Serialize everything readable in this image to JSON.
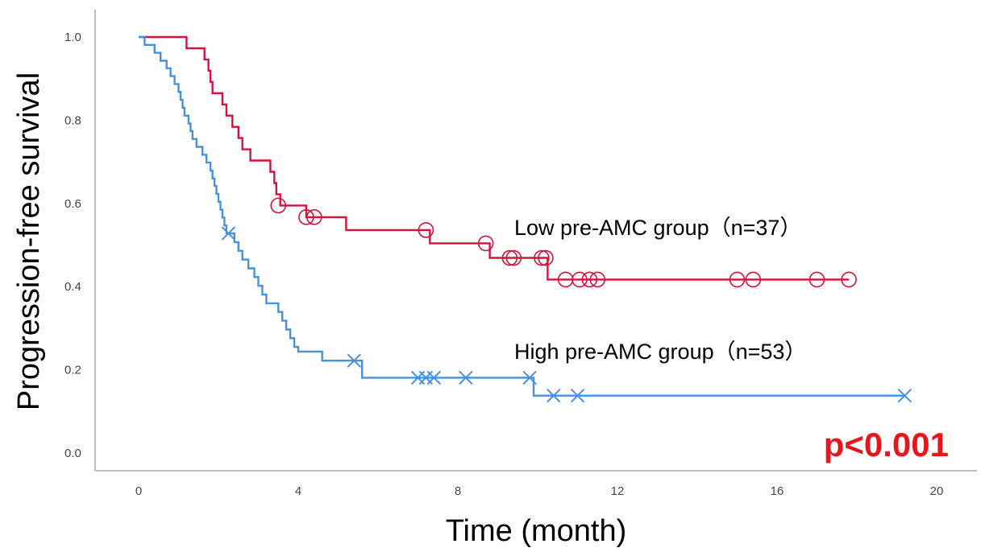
{
  "chart_data": {
    "type": "line",
    "subtype": "kaplan-meier step curve",
    "title": "",
    "xlabel": "Time (month)",
    "ylabel": "Progression-free survival",
    "xlim": [
      -0.5,
      20.8
    ],
    "ylim": [
      -0.045,
      1.07
    ],
    "xticks": [
      0,
      4,
      8,
      12,
      16,
      20
    ],
    "xtick_labels": [
      "0",
      "4",
      "8",
      "12",
      "16",
      "20"
    ],
    "yticks": [
      0.0,
      0.2,
      0.4,
      0.6,
      0.8,
      1.0
    ],
    "ytick_labels": [
      "0.0",
      "0.2",
      "0.4",
      "0.6",
      "0.8",
      "1.0"
    ],
    "grid": false,
    "annotation": "p<0.001",
    "annotation_color": "#e8151a",
    "series": [
      {
        "name": "Low pre-AMC group（n=37）",
        "color": "#d2143c",
        "censor_marker": "circle",
        "steps": [
          [
            0.0,
            1.0
          ],
          [
            1.2,
            0.973
          ],
          [
            1.65,
            0.946
          ],
          [
            1.75,
            0.919
          ],
          [
            1.8,
            0.892
          ],
          [
            1.85,
            0.865
          ],
          [
            2.1,
            0.838
          ],
          [
            2.2,
            0.811
          ],
          [
            2.35,
            0.784
          ],
          [
            2.5,
            0.757
          ],
          [
            2.6,
            0.73
          ],
          [
            2.8,
            0.703
          ],
          [
            3.3,
            0.676
          ],
          [
            3.4,
            0.649
          ],
          [
            3.45,
            0.622
          ],
          [
            3.55,
            0.595
          ],
          [
            4.2,
            0.567
          ],
          [
            5.2,
            0.536
          ],
          [
            7.3,
            0.504
          ],
          [
            8.8,
            0.469
          ],
          [
            10.25,
            0.417
          ],
          [
            17.8,
            0.417
          ]
        ],
        "censored": [
          [
            3.5,
            0.595
          ],
          [
            4.2,
            0.567
          ],
          [
            4.4,
            0.567
          ],
          [
            7.2,
            0.536
          ],
          [
            8.7,
            0.504
          ],
          [
            9.3,
            0.469
          ],
          [
            9.4,
            0.469
          ],
          [
            10.1,
            0.469
          ],
          [
            10.2,
            0.469
          ],
          [
            10.7,
            0.417
          ],
          [
            11.05,
            0.417
          ],
          [
            11.3,
            0.417
          ],
          [
            11.5,
            0.417
          ],
          [
            15.0,
            0.417
          ],
          [
            15.4,
            0.417
          ],
          [
            17.0,
            0.417
          ],
          [
            17.8,
            0.417
          ]
        ]
      },
      {
        "name": "High pre-AMC group（n=53）",
        "color": "#4a90d9",
        "censor_marker": "cross",
        "steps": [
          [
            0.0,
            1.0
          ],
          [
            0.15,
            0.981
          ],
          [
            0.4,
            0.962
          ],
          [
            0.55,
            0.943
          ],
          [
            0.7,
            0.925
          ],
          [
            0.8,
            0.906
          ],
          [
            0.9,
            0.887
          ],
          [
            1.0,
            0.868
          ],
          [
            1.05,
            0.849
          ],
          [
            1.1,
            0.83
          ],
          [
            1.15,
            0.811
          ],
          [
            1.25,
            0.792
          ],
          [
            1.3,
            0.774
          ],
          [
            1.35,
            0.755
          ],
          [
            1.45,
            0.736
          ],
          [
            1.6,
            0.717
          ],
          [
            1.7,
            0.698
          ],
          [
            1.8,
            0.679
          ],
          [
            1.85,
            0.66
          ],
          [
            1.9,
            0.642
          ],
          [
            1.95,
            0.623
          ],
          [
            2.0,
            0.604
          ],
          [
            2.05,
            0.585
          ],
          [
            2.1,
            0.566
          ],
          [
            2.15,
            0.547
          ],
          [
            2.2,
            0.528
          ],
          [
            2.4,
            0.507
          ],
          [
            2.5,
            0.486
          ],
          [
            2.6,
            0.465
          ],
          [
            2.75,
            0.444
          ],
          [
            2.9,
            0.423
          ],
          [
            3.0,
            0.402
          ],
          [
            3.1,
            0.381
          ],
          [
            3.2,
            0.36
          ],
          [
            3.5,
            0.339
          ],
          [
            3.6,
            0.318
          ],
          [
            3.7,
            0.297
          ],
          [
            3.8,
            0.276
          ],
          [
            3.9,
            0.255
          ],
          [
            4.0,
            0.244
          ],
          [
            4.6,
            0.222
          ],
          [
            5.6,
            0.181
          ],
          [
            9.9,
            0.138
          ],
          [
            19.2,
            0.138
          ]
        ],
        "censored": [
          [
            2.25,
            0.528
          ],
          [
            5.4,
            0.222
          ],
          [
            7.0,
            0.181
          ],
          [
            7.2,
            0.181
          ],
          [
            7.4,
            0.181
          ],
          [
            8.2,
            0.181
          ],
          [
            9.8,
            0.181
          ],
          [
            10.4,
            0.138
          ],
          [
            11.0,
            0.138
          ],
          [
            19.2,
            0.138
          ]
        ]
      }
    ]
  }
}
